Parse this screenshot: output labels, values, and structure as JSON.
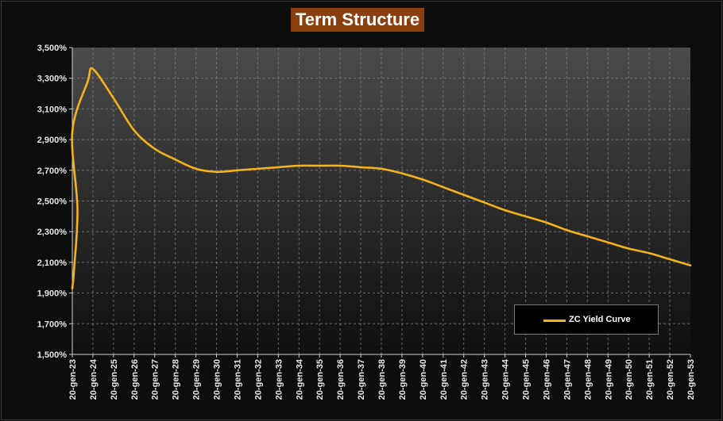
{
  "chart_data": {
    "type": "line",
    "title": "Term Structure",
    "xlabel": "",
    "ylabel": "",
    "y_tick_labels": [
      "1,500%",
      "1,700%",
      "1,900%",
      "2,100%",
      "2,300%",
      "2,500%",
      "2,700%",
      "2,900%",
      "3,100%",
      "3,300%",
      "3,500%"
    ],
    "x_tick_labels": [
      "20-gen-23",
      "20-gen-24",
      "20-gen-25",
      "20-gen-26",
      "20-gen-27",
      "20-gen-28",
      "20-gen-29",
      "20-gen-30",
      "20-gen-31",
      "20-gen-32",
      "20-gen-33",
      "20-gen-34",
      "20-gen-35",
      "20-gen-36",
      "20-gen-37",
      "20-gen-38",
      "20-gen-39",
      "20-gen-40",
      "20-gen-41",
      "20-gen-42",
      "20-gen-43",
      "20-gen-44",
      "20-gen-45",
      "20-gen-46",
      "20-gen-47",
      "20-gen-48",
      "20-gen-49",
      "20-gen-50",
      "20-gen-51",
      "20-gen-52",
      "20-gen-53"
    ],
    "ylim": [
      1.5,
      3.5
    ],
    "y_unit": "%",
    "grid": true,
    "legend_position": "bottom-right",
    "series": [
      {
        "name": "ZC Yield Curve",
        "color": "#f6b21a",
        "x": [
          "20-gen-23",
          "20-feb-23",
          "20-apr-23",
          "20-jul-23",
          "20-ott-23",
          "20-gen-24",
          "20-gen-25",
          "20-gen-26",
          "20-gen-27",
          "20-gen-28",
          "20-gen-29",
          "20-gen-30",
          "20-gen-31",
          "20-gen-32",
          "20-gen-33",
          "20-gen-34",
          "20-gen-35",
          "20-gen-36",
          "20-gen-37",
          "20-gen-38",
          "20-gen-39",
          "20-gen-40",
          "20-gen-41",
          "20-gen-42",
          "20-gen-43",
          "20-gen-44",
          "20-gen-45",
          "20-gen-46",
          "20-gen-47",
          "20-gen-48",
          "20-gen-49",
          "20-gen-50",
          "20-gen-51",
          "20-gen-52",
          "20-gen-53"
        ],
        "values": [
          1.93,
          2.05,
          2.45,
          2.95,
          3.28,
          3.36,
          3.17,
          2.96,
          2.84,
          2.77,
          2.71,
          2.69,
          2.7,
          2.71,
          2.72,
          2.73,
          2.73,
          2.73,
          2.72,
          2.71,
          2.68,
          2.64,
          2.59,
          2.54,
          2.49,
          2.44,
          2.4,
          2.36,
          2.31,
          2.27,
          2.23,
          2.19,
          2.16,
          2.12,
          2.08
        ]
      }
    ]
  },
  "colors": {
    "background": "#0d0d0d",
    "title_background": "#8b3f0e",
    "grid": "#8a8a8a",
    "line": "#f6b21a"
  }
}
